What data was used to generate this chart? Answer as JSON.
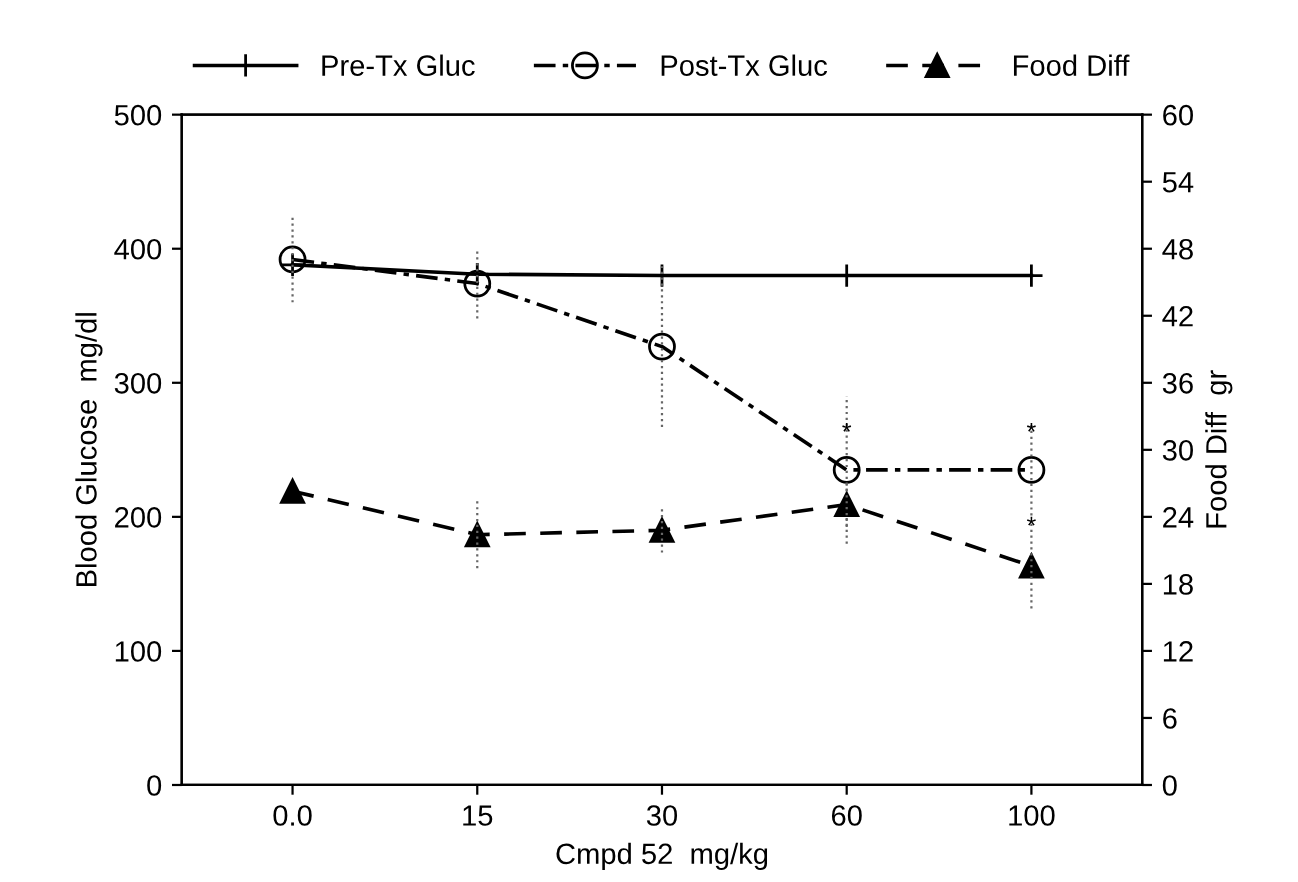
{
  "chart_data": {
    "type": "line",
    "xlabel": "Cmpd 52  mg/kg",
    "ylabel": "Blood Glucose  mg/dl",
    "y2label": "Food Diff  gr",
    "categories": [
      "0.0",
      "15",
      "30",
      "60",
      "100"
    ],
    "series": [
      {
        "name": "Pre-Tx Gluc",
        "color": "#000000",
        "values": [
          388,
          381,
          380,
          380,
          380
        ],
        "marker": "cross",
        "line_style": "solid"
      },
      {
        "name": "Post-Tx Gluc",
        "color": "#000000",
        "values": [
          392,
          374,
          327,
          235,
          235
        ],
        "errors": [
          32,
          26,
          60,
          55,
          34
        ],
        "marker": "circle",
        "line_style": "dashdot"
      },
      {
        "name": "Food Diff",
        "color": "#000000",
        "values": [
          26.3,
          22.4,
          22.8,
          25.1,
          19.6
        ],
        "errors": [
          null,
          3,
          2,
          2,
          3.8
        ],
        "axis": "y2",
        "marker": "triangle",
        "line_style": "dashed"
      }
    ],
    "ylim": [
      0,
      500
    ],
    "yticks": [
      0,
      100,
      200,
      300,
      400,
      500
    ],
    "y2lim": [
      0,
      60
    ],
    "y2ticks": [
      0,
      6,
      12,
      18,
      24,
      30,
      36,
      42,
      48,
      54,
      60
    ],
    "annotations": [
      {
        "text": "*",
        "x": "60",
        "y": 262
      },
      {
        "text": "*",
        "x": "100",
        "y": 262
      },
      {
        "text": "*",
        "x": "100",
        "y": 192
      }
    ],
    "legend": "top",
    "grid": false
  }
}
